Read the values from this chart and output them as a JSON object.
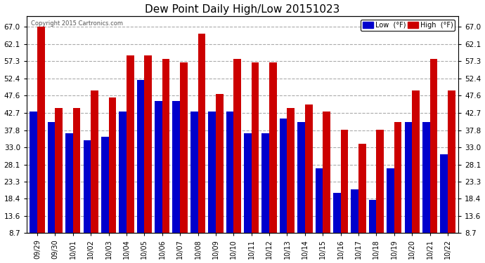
{
  "title": "Dew Point Daily High/Low 20151023",
  "copyright": "Copyright 2015 Cartronics.com",
  "categories": [
    "09/29",
    "09/30",
    "10/01",
    "10/02",
    "10/03",
    "10/04",
    "10/05",
    "10/06",
    "10/07",
    "10/08",
    "10/09",
    "10/10",
    "10/11",
    "10/12",
    "10/13",
    "10/14",
    "10/15",
    "10/16",
    "10/17",
    "10/18",
    "10/19",
    "10/20",
    "10/21",
    "10/22"
  ],
  "low_values": [
    43,
    40,
    37,
    35,
    36,
    43,
    52,
    46,
    46,
    43,
    43,
    43,
    37,
    37,
    41,
    40,
    27,
    20,
    21,
    18,
    27,
    40,
    40,
    31
  ],
  "high_values": [
    67,
    44,
    44,
    49,
    47,
    59,
    59,
    58,
    57,
    65,
    48,
    58,
    57,
    57,
    44,
    45,
    43,
    38,
    34,
    38,
    40,
    49,
    58,
    49
  ],
  "low_color": "#0000cc",
  "high_color": "#cc0000",
  "background_color": "#ffffff",
  "plot_background": "#ffffff",
  "grid_color": "#aaaaaa",
  "yticks": [
    8.7,
    13.6,
    18.4,
    23.3,
    28.1,
    33.0,
    37.8,
    42.7,
    47.6,
    52.4,
    57.3,
    62.1,
    67.0
  ],
  "ylim": [
    8.7,
    70
  ],
  "bar_bottom": 8.7,
  "legend_low_label": "Low  (°F)",
  "legend_high_label": "High  (°F)"
}
